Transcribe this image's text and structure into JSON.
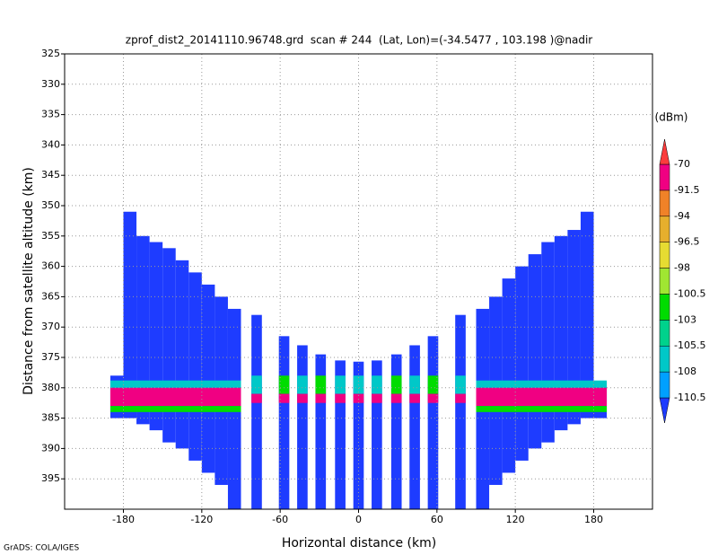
{
  "chart_data": {
    "type": "heatmap",
    "title": "zprof_dist2_20141110.96748.grd  scan # 244  (Lat, Lon)=(-34.5477 , 103.198 )@nadir",
    "x_label": "Horizontal distance (km)",
    "y_label": "Distance from satellite altitude (km)",
    "colorbar_label": "(dBm)",
    "footer": "GrADS: COLA/IGES",
    "xlim": [
      -225,
      225
    ],
    "xticks": [
      -180,
      -120,
      -60,
      0,
      60,
      120,
      180
    ],
    "ylim": [
      400,
      325
    ],
    "yticks": [
      325,
      330,
      335,
      340,
      345,
      350,
      355,
      360,
      365,
      370,
      375,
      380,
      385,
      390,
      395
    ],
    "grid": true,
    "levels": [
      -110.5,
      -108,
      -105.5,
      -103,
      -100.5,
      -98,
      -96.5,
      -94,
      -91.5,
      -70
    ],
    "colors": [
      "#1e3cff",
      "#00a0ff",
      "#00c8c8",
      "#00d28c",
      "#00dc00",
      "#a0e632",
      "#e6dc32",
      "#e6af2d",
      "#f08228",
      "#f00082",
      "#fa3c3c"
    ],
    "cells": [
      {
        "x": [
          -190,
          -180
        ],
        "y": [
          378,
          385
        ],
        "value": -112
      },
      {
        "x": [
          -180,
          -170
        ],
        "y": [
          351,
          385
        ],
        "value": -112
      },
      {
        "x": [
          -170,
          -160
        ],
        "y": [
          355,
          386
        ],
        "value": -112
      },
      {
        "x": [
          -160,
          -150
        ],
        "y": [
          356,
          387
        ],
        "value": -112
      },
      {
        "x": [
          -150,
          -140
        ],
        "y": [
          357,
          389
        ],
        "value": -112
      },
      {
        "x": [
          -140,
          -130
        ],
        "y": [
          359,
          390
        ],
        "value": -112
      },
      {
        "x": [
          -130,
          -120
        ],
        "y": [
          361,
          392
        ],
        "value": -112
      },
      {
        "x": [
          -120,
          -110
        ],
        "y": [
          363,
          394
        ],
        "value": -112
      },
      {
        "x": [
          -110,
          -100
        ],
        "y": [
          365,
          396
        ],
        "value": -112
      },
      {
        "x": [
          -100,
          -90
        ],
        "y": [
          367,
          400
        ],
        "value": -112
      },
      {
        "x": [
          90,
          100
        ],
        "y": [
          367,
          400
        ],
        "value": -112
      },
      {
        "x": [
          100,
          110
        ],
        "y": [
          365,
          396
        ],
        "value": -112
      },
      {
        "x": [
          110,
          120
        ],
        "y": [
          362,
          394
        ],
        "value": -112
      },
      {
        "x": [
          120,
          130
        ],
        "y": [
          360,
          392
        ],
        "value": -112
      },
      {
        "x": [
          130,
          140
        ],
        "y": [
          358,
          390
        ],
        "value": -112
      },
      {
        "x": [
          140,
          150
        ],
        "y": [
          356,
          389
        ],
        "value": -112
      },
      {
        "x": [
          150,
          160
        ],
        "y": [
          355,
          387
        ],
        "value": -112
      },
      {
        "x": [
          160,
          170
        ],
        "y": [
          354,
          386
        ],
        "value": -112
      },
      {
        "x": [
          170,
          180
        ],
        "y": [
          351,
          385
        ],
        "value": -112
      },
      {
        "x": [
          180,
          190
        ],
        "y": [
          379,
          385
        ],
        "value": -112
      },
      {
        "x": [
          -82,
          -74
        ],
        "y": [
          368,
          400
        ],
        "value": -112
      },
      {
        "x": [
          -61,
          -53
        ],
        "y": [
          371.5,
          400
        ],
        "value": -112
      },
      {
        "x": [
          -47,
          -39
        ],
        "y": [
          373,
          400
        ],
        "value": -112
      },
      {
        "x": [
          -33,
          -25
        ],
        "y": [
          374.5,
          400
        ],
        "value": -112
      },
      {
        "x": [
          -18,
          -10
        ],
        "y": [
          375.5,
          400
        ],
        "value": -112
      },
      {
        "x": [
          -4,
          4
        ],
        "y": [
          375.7,
          400
        ],
        "value": -112
      },
      {
        "x": [
          10,
          18
        ],
        "y": [
          375.5,
          400
        ],
        "value": -112
      },
      {
        "x": [
          25,
          33
        ],
        "y": [
          374.5,
          400
        ],
        "value": -112
      },
      {
        "x": [
          39,
          47
        ],
        "y": [
          373,
          400
        ],
        "value": -112
      },
      {
        "x": [
          53,
          61
        ],
        "y": [
          371.5,
          400
        ],
        "value": -112
      },
      {
        "x": [
          74,
          82
        ],
        "y": [
          368,
          400
        ],
        "value": -112
      },
      {
        "x": [
          -190,
          -90
        ],
        "y": [
          378.8,
          380
        ],
        "value": -107
      },
      {
        "x": [
          -190,
          -90
        ],
        "y": [
          380,
          383
        ],
        "value": -85
      },
      {
        "x": [
          -190,
          -90
        ],
        "y": [
          383,
          384
        ],
        "value": -102
      },
      {
        "x": [
          90,
          190
        ],
        "y": [
          378.8,
          380
        ],
        "value": -107
      },
      {
        "x": [
          90,
          190
        ],
        "y": [
          380,
          383
        ],
        "value": -85
      },
      {
        "x": [
          90,
          190
        ],
        "y": [
          383,
          384
        ],
        "value": -102
      },
      {
        "x": [
          -82,
          -74
        ],
        "y": [
          378,
          381
        ],
        "value": -107
      },
      {
        "x": [
          -82,
          -74
        ],
        "y": [
          381,
          382.5
        ],
        "value": -85
      },
      {
        "x": [
          -61,
          -53
        ],
        "y": [
          378,
          381
        ],
        "value": -102
      },
      {
        "x": [
          -61,
          -53
        ],
        "y": [
          381,
          382.5
        ],
        "value": -85
      },
      {
        "x": [
          -47,
          -39
        ],
        "y": [
          378,
          381
        ],
        "value": -107
      },
      {
        "x": [
          -47,
          -39
        ],
        "y": [
          381,
          382.5
        ],
        "value": -85
      },
      {
        "x": [
          -33,
          -25
        ],
        "y": [
          378,
          381
        ],
        "value": -102
      },
      {
        "x": [
          -33,
          -25
        ],
        "y": [
          381,
          382.5
        ],
        "value": -85
      },
      {
        "x": [
          -18,
          -10
        ],
        "y": [
          378,
          381
        ],
        "value": -107
      },
      {
        "x": [
          -18,
          -10
        ],
        "y": [
          381,
          382.5
        ],
        "value": -85
      },
      {
        "x": [
          -4,
          4
        ],
        "y": [
          378,
          381
        ],
        "value": -107
      },
      {
        "x": [
          -4,
          4
        ],
        "y": [
          381,
          382.5
        ],
        "value": -85
      },
      {
        "x": [
          10,
          18
        ],
        "y": [
          378,
          381
        ],
        "value": -107
      },
      {
        "x": [
          10,
          18
        ],
        "y": [
          381,
          382.5
        ],
        "value": -85
      },
      {
        "x": [
          25,
          33
        ],
        "y": [
          378,
          381
        ],
        "value": -102
      },
      {
        "x": [
          25,
          33
        ],
        "y": [
          381,
          382.5
        ],
        "value": -85
      },
      {
        "x": [
          39,
          47
        ],
        "y": [
          378,
          381
        ],
        "value": -107
      },
      {
        "x": [
          39,
          47
        ],
        "y": [
          381,
          382.5
        ],
        "value": -85
      },
      {
        "x": [
          53,
          61
        ],
        "y": [
          378,
          381
        ],
        "value": -102
      },
      {
        "x": [
          53,
          61
        ],
        "y": [
          381,
          382.5
        ],
        "value": -85
      },
      {
        "x": [
          74,
          82
        ],
        "y": [
          378,
          381
        ],
        "value": -107
      },
      {
        "x": [
          74,
          82
        ],
        "y": [
          381,
          382.5
        ],
        "value": -85
      }
    ]
  }
}
